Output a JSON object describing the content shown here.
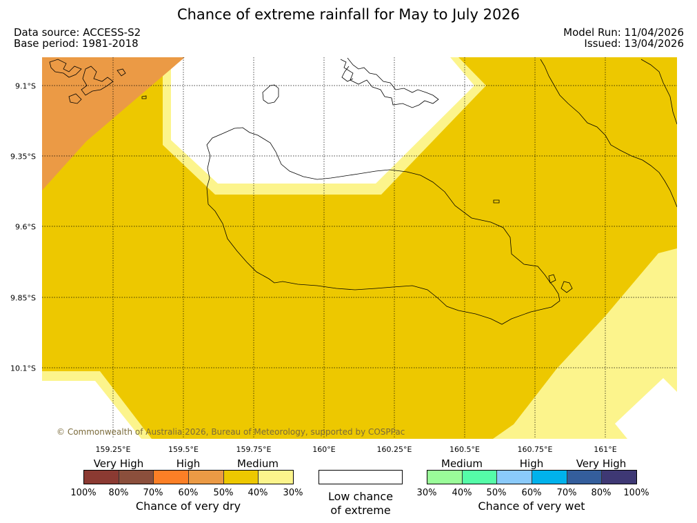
{
  "header": {
    "title": "Chance of extreme rainfall for May to July 2026",
    "data_source": "Data source: ACCESS-S2",
    "base_period": "Base period: 1981-2018",
    "model_run": "Model Run: 11/04/2026",
    "issued": "Issued: 13/04/2026"
  },
  "map": {
    "copyright": "© Commonwealth of Australia 2026, Bureau of Meteorology, supported by COSPPac",
    "lon_labels": [
      "159.25°E",
      "159.5°E",
      "159.75°E",
      "160°E",
      "160.25°E",
      "160.5°E",
      "160.75°E",
      "161°E"
    ],
    "lat_labels": [
      "9.1°S",
      "9.35°S",
      "9.6°S",
      "9.85°S",
      "10.1°S"
    ],
    "colors": {
      "medium_dry": "#edc800",
      "low_dry": "#fcf48c",
      "high_dry": "#eb9a45",
      "low_chance": "#ffffff",
      "coastline": "#000000",
      "gridline": "#000000"
    }
  },
  "legend": {
    "dry": {
      "categories": [
        "Very High",
        "High",
        "Medium"
      ],
      "colors": [
        "#8b3a32",
        "#8b4f3c",
        "#fc7f26",
        "#eb9a45",
        "#edc800",
        "#fcf48c"
      ],
      "ticks": [
        "100%",
        "80%",
        "70%",
        "60%",
        "50%",
        "40%",
        "30%"
      ],
      "title": "Chance of very dry"
    },
    "low": {
      "line1": "Low chance",
      "line2": "of extreme"
    },
    "wet": {
      "categories": [
        "Medium",
        "High",
        "Very High"
      ],
      "colors": [
        "#9afc99",
        "#55fca8",
        "#8acafa",
        "#00b2ec",
        "#345e9c",
        "#3e3874"
      ],
      "ticks": [
        "30%",
        "40%",
        "50%",
        "60%",
        "70%",
        "80%",
        "100%"
      ],
      "title": "Chance of very wet"
    }
  }
}
